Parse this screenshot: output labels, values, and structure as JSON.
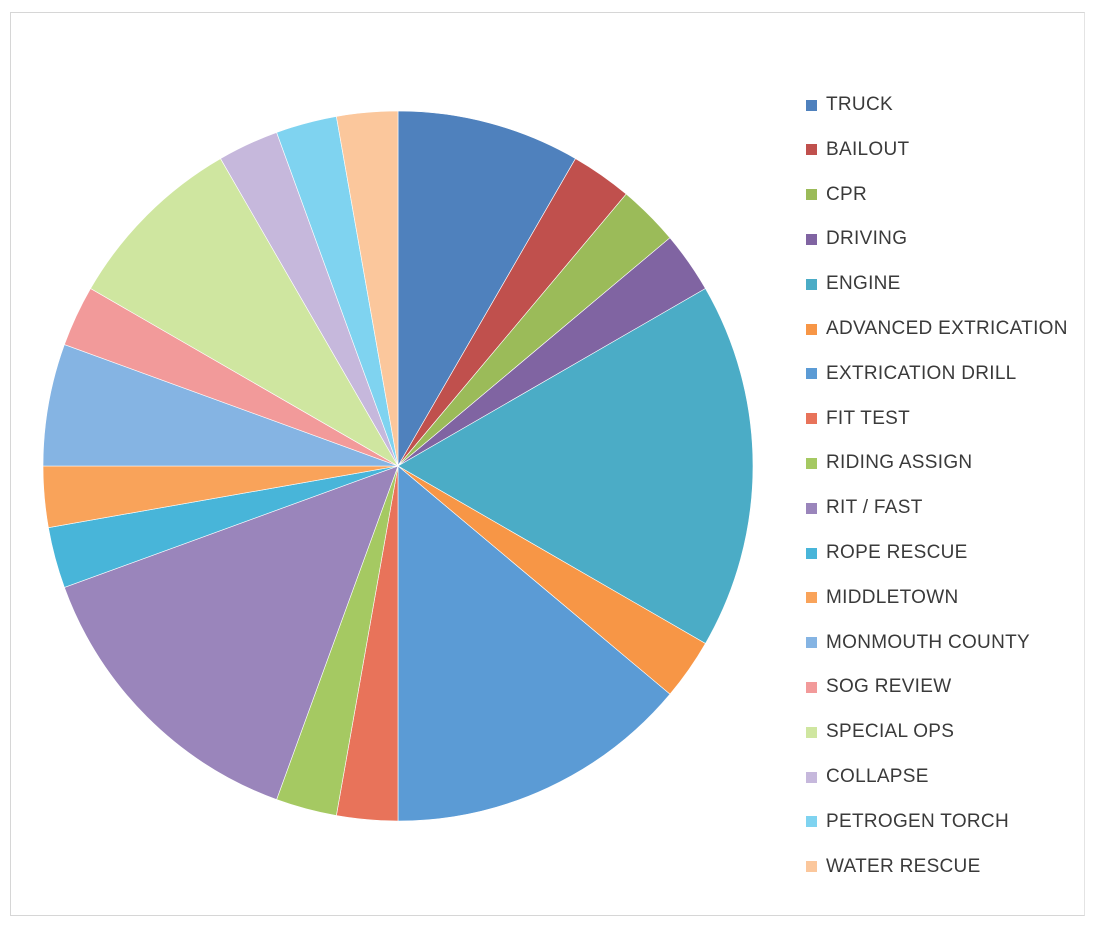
{
  "chart_data": {
    "type": "pie",
    "title": "",
    "legend_position": "right",
    "slices": [
      {
        "label": "TRUCK",
        "value": 3,
        "color": "#4f81bd"
      },
      {
        "label": "BAILOUT",
        "value": 1,
        "color": "#c0504d"
      },
      {
        "label": "CPR",
        "value": 1,
        "color": "#9bbb59"
      },
      {
        "label": "DRIVING",
        "value": 1,
        "color": "#8064a2"
      },
      {
        "label": "ENGINE",
        "value": 6,
        "color": "#4bacc6"
      },
      {
        "label": "ADVANCED EXTRICATION",
        "value": 1,
        "color": "#f79646"
      },
      {
        "label": "EXTRICATION DRILL",
        "value": 5,
        "color": "#5b9bd5"
      },
      {
        "label": "FIT TEST",
        "value": 1,
        "color": "#e8735a"
      },
      {
        "label": "RIDING ASSIGN",
        "value": 1,
        "color": "#a5c962"
      },
      {
        "label": "RIT / FAST",
        "value": 5,
        "color": "#9a85bb"
      },
      {
        "label": "ROPE RESCUE",
        "value": 1,
        "color": "#48b5d9"
      },
      {
        "label": "MIDDLETOWN",
        "value": 1,
        "color": "#f9a35a"
      },
      {
        "label": "MONMOUTH COUNTY",
        "value": 2,
        "color": "#85b4e3"
      },
      {
        "label": "SOG REVIEW",
        "value": 1,
        "color": "#f29a9a"
      },
      {
        "label": "SPECIAL OPS",
        "value": 3,
        "color": "#cfe6a0"
      },
      {
        "label": "COLLAPSE",
        "value": 1,
        "color": "#c6b8dc"
      },
      {
        "label": "PETROGEN TORCH",
        "value": 1,
        "color": "#7fd3f0"
      },
      {
        "label": "WATER RESCUE",
        "value": 1,
        "color": "#fbc79c"
      }
    ]
  }
}
